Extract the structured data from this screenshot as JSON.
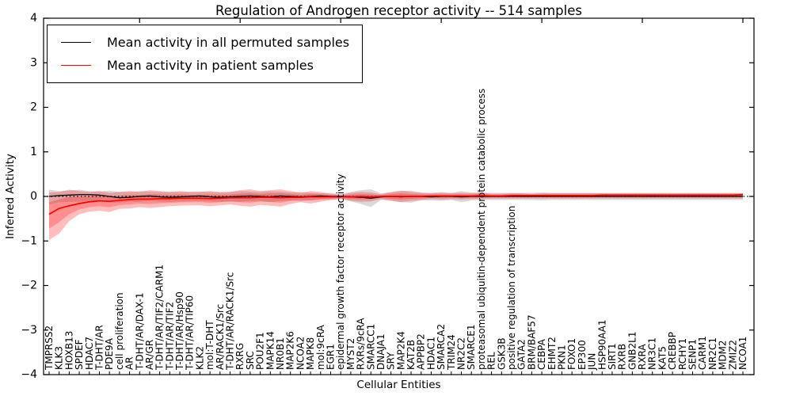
{
  "figure": {
    "title": "Regulation of Androgen receptor activity -- 514 samples",
    "xlabel": "Cellular Entities",
    "ylabel": "Inferred Activity"
  },
  "chart_data": {
    "type": "line",
    "title": "Regulation of Androgen receptor activity -- 514 samples",
    "xlabel": "Cellular Entities",
    "ylabel": "Inferred Activity",
    "ylim": [
      -4,
      4
    ],
    "yticks": [
      4,
      3,
      2,
      1,
      0,
      -1,
      -2,
      -3,
      -4
    ],
    "grid": false,
    "zero_line": "dotted-black",
    "legend_position": "upper left",
    "categories": [
      "TMPRSS2",
      "KLK3",
      "HOXB13",
      "SPDEF",
      "HDAC7",
      "T-DHT/AR",
      "PDE9A",
      "cell proliferation",
      "AR",
      "T-DHT/AR/DAX-1",
      "AR/GR",
      "T-DHT/AR/TIF2/CARM1",
      "T-DHT/AR/TIF2",
      "T-DHT/AR/Hsp90",
      "T-DHT/AR/TIP60",
      "KLK2",
      "mol:T-DHT",
      "AR/RACK1/Src",
      "T-DHT/AR/RACK1/Src",
      "RXRG",
      "SRC",
      "POU2F1",
      "MAPK14",
      "NR0B1",
      "MAP2K6",
      "NCOA2",
      "MAPK8",
      "mol:9cRA",
      "EGR1",
      "epidermal growth factor receptor activity",
      "MYST2",
      "RXRs/9cRA",
      "SMARCC1",
      "DNAJA1",
      "SRY",
      "MAP2K4",
      "KAT2B",
      "APPBP2",
      "HDAC1",
      "SMARCA2",
      "TRIM24",
      "NR2C2",
      "SMARCE1",
      "proteasomal ubiquitin-dependent protein catabolic process",
      "REL",
      "GSK3B",
      "positive regulation of transcription",
      "GATA2",
      "BRM/BAF57",
      "CEBPA",
      "EHMT2",
      "PKN1",
      "FOXO1",
      "EP300",
      "JUN",
      "HSP90AA1",
      "SIRT1",
      "RXRB",
      "GNB2L1",
      "RXRA",
      "NR3C1",
      "KAT5",
      "CREBBP",
      "RCHY1",
      "SENP1",
      "CARM1",
      "NR2C1",
      "MDM2",
      "ZMIZ2",
      "NCOA1"
    ],
    "series": [
      {
        "name": "Mean activity in all permuted samples",
        "color": "#000000",
        "values": [
          0.0,
          0.02,
          0.03,
          0.04,
          0.04,
          0.03,
          0.0,
          -0.03,
          -0.02,
          0.0,
          0.01,
          -0.01,
          -0.02,
          -0.01,
          0.0,
          0.01,
          -0.01,
          -0.02,
          -0.01,
          0.0,
          0.01,
          0.0,
          -0.01,
          0.01,
          0.0,
          -0.01,
          0.0,
          0.01,
          0.0,
          0.0,
          -0.01,
          -0.02,
          -0.04,
          -0.01,
          0.0,
          -0.01,
          0.0,
          0.0,
          -0.01,
          0.0,
          0.0,
          -0.01,
          0.0,
          0.0,
          0.0,
          0.0,
          0.0,
          0.0,
          0.0,
          0.0,
          0.0,
          0.0,
          0.0,
          0.0,
          0.0,
          0.0,
          0.0,
          0.0,
          0.0,
          0.0,
          0.0,
          0.0,
          0.0,
          0.0,
          0.0,
          0.0,
          0.0,
          0.0,
          0.0,
          0.0
        ],
        "band_color": "#808080",
        "band_hi": [
          0.15,
          0.12,
          0.13,
          0.15,
          0.12,
          0.11,
          0.13,
          0.1,
          0.1,
          0.12,
          0.11,
          0.1,
          0.1,
          0.1,
          0.1,
          0.11,
          0.1,
          0.09,
          0.1,
          0.12,
          0.11,
          0.1,
          0.12,
          0.11,
          0.09,
          0.1,
          0.08,
          0.07,
          0.08,
          0.05,
          0.1,
          0.14,
          0.16,
          0.07,
          0.09,
          0.12,
          0.13,
          0.09,
          0.08,
          0.1,
          0.08,
          0.12,
          0.09,
          0.08,
          0.08,
          0.08,
          0.08,
          0.08,
          0.08,
          0.09,
          0.08,
          0.08,
          0.08,
          0.08,
          0.08,
          0.08,
          0.08,
          0.08,
          0.08,
          0.08,
          0.08,
          0.08,
          0.08,
          0.08,
          0.08,
          0.08,
          0.08,
          0.08,
          0.08,
          0.08
        ],
        "band_lo": [
          -0.18,
          -0.13,
          -0.12,
          -0.12,
          -0.1,
          -0.1,
          -0.14,
          -0.14,
          -0.12,
          -0.12,
          -0.1,
          -0.11,
          -0.12,
          -0.11,
          -0.1,
          -0.1,
          -0.11,
          -0.12,
          -0.11,
          -0.12,
          -0.1,
          -0.1,
          -0.13,
          -0.1,
          -0.09,
          -0.11,
          -0.08,
          -0.06,
          -0.08,
          -0.05,
          -0.11,
          -0.17,
          -0.24,
          -0.08,
          -0.09,
          -0.13,
          -0.14,
          -0.09,
          -0.09,
          -0.1,
          -0.08,
          -0.13,
          -0.09,
          -0.08,
          -0.08,
          -0.08,
          -0.08,
          -0.08,
          -0.08,
          -0.09,
          -0.08,
          -0.08,
          -0.08,
          -0.08,
          -0.08,
          -0.08,
          -0.08,
          -0.08,
          -0.08,
          -0.08,
          -0.08,
          -0.08,
          -0.08,
          -0.08,
          -0.08,
          -0.08,
          -0.08,
          -0.08,
          -0.08,
          -0.08
        ]
      },
      {
        "name": "Mean activity in patient samples",
        "color": "#ff0000",
        "values": [
          -0.4,
          -0.27,
          -0.21,
          -0.16,
          -0.12,
          -0.1,
          -0.11,
          -0.09,
          -0.07,
          -0.06,
          -0.06,
          -0.05,
          -0.05,
          -0.04,
          -0.04,
          -0.04,
          -0.05,
          -0.04,
          -0.03,
          -0.03,
          -0.03,
          -0.02,
          -0.02,
          -0.03,
          -0.02,
          -0.02,
          -0.01,
          -0.01,
          -0.01,
          -0.01,
          -0.01,
          0.0,
          -0.01,
          0.0,
          0.0,
          0.0,
          0.0,
          0.0,
          0.01,
          0.01,
          0.01,
          0.01,
          0.01,
          0.02,
          0.01,
          0.01,
          0.02,
          0.02,
          0.02,
          0.02,
          0.02,
          0.02,
          0.02,
          0.02,
          0.02,
          0.03,
          0.03,
          0.03,
          0.03,
          0.03,
          0.03,
          0.03,
          0.03,
          0.03,
          0.03,
          0.03,
          0.03,
          0.03,
          0.03,
          0.04
        ],
        "band_color": "#ff0000",
        "band_hi": [
          0.09,
          0.1,
          0.15,
          0.12,
          0.1,
          0.12,
          0.08,
          0.1,
          0.12,
          0.1,
          0.14,
          0.12,
          0.1,
          0.12,
          0.1,
          0.1,
          0.12,
          0.1,
          0.1,
          0.14,
          0.16,
          0.12,
          0.14,
          0.16,
          0.12,
          0.08,
          0.12,
          0.1,
          0.06,
          0.04,
          0.08,
          0.1,
          0.09,
          0.05,
          0.1,
          0.13,
          0.1,
          0.08,
          0.07,
          0.08,
          0.07,
          0.08,
          0.07,
          0.09,
          0.06,
          0.06,
          0.07,
          0.07,
          0.06,
          0.07,
          0.07,
          0.07,
          0.07,
          0.07,
          0.07,
          0.07,
          0.07,
          0.07,
          0.07,
          0.07,
          0.07,
          0.07,
          0.07,
          0.07,
          0.07,
          0.07,
          0.07,
          0.07,
          0.07,
          0.07
        ],
        "band_lo": [
          -0.98,
          -0.83,
          -0.55,
          -0.4,
          -0.34,
          -0.32,
          -0.35,
          -0.28,
          -0.27,
          -0.24,
          -0.26,
          -0.24,
          -0.22,
          -0.21,
          -0.2,
          -0.2,
          -0.22,
          -0.2,
          -0.18,
          -0.21,
          -0.23,
          -0.19,
          -0.21,
          -0.23,
          -0.17,
          -0.13,
          -0.16,
          -0.12,
          -0.08,
          -0.06,
          -0.1,
          -0.12,
          -0.11,
          -0.06,
          -0.1,
          -0.13,
          -0.1,
          -0.08,
          -0.06,
          -0.07,
          -0.06,
          -0.07,
          -0.06,
          -0.06,
          -0.05,
          -0.05,
          -0.05,
          -0.05,
          -0.05,
          -0.05,
          -0.05,
          -0.05,
          -0.05,
          -0.05,
          -0.05,
          -0.05,
          -0.05,
          -0.05,
          -0.05,
          -0.05,
          -0.05,
          -0.05,
          -0.05,
          -0.05,
          -0.05,
          -0.05,
          -0.05,
          -0.05,
          -0.05,
          -0.05
        ]
      }
    ]
  }
}
